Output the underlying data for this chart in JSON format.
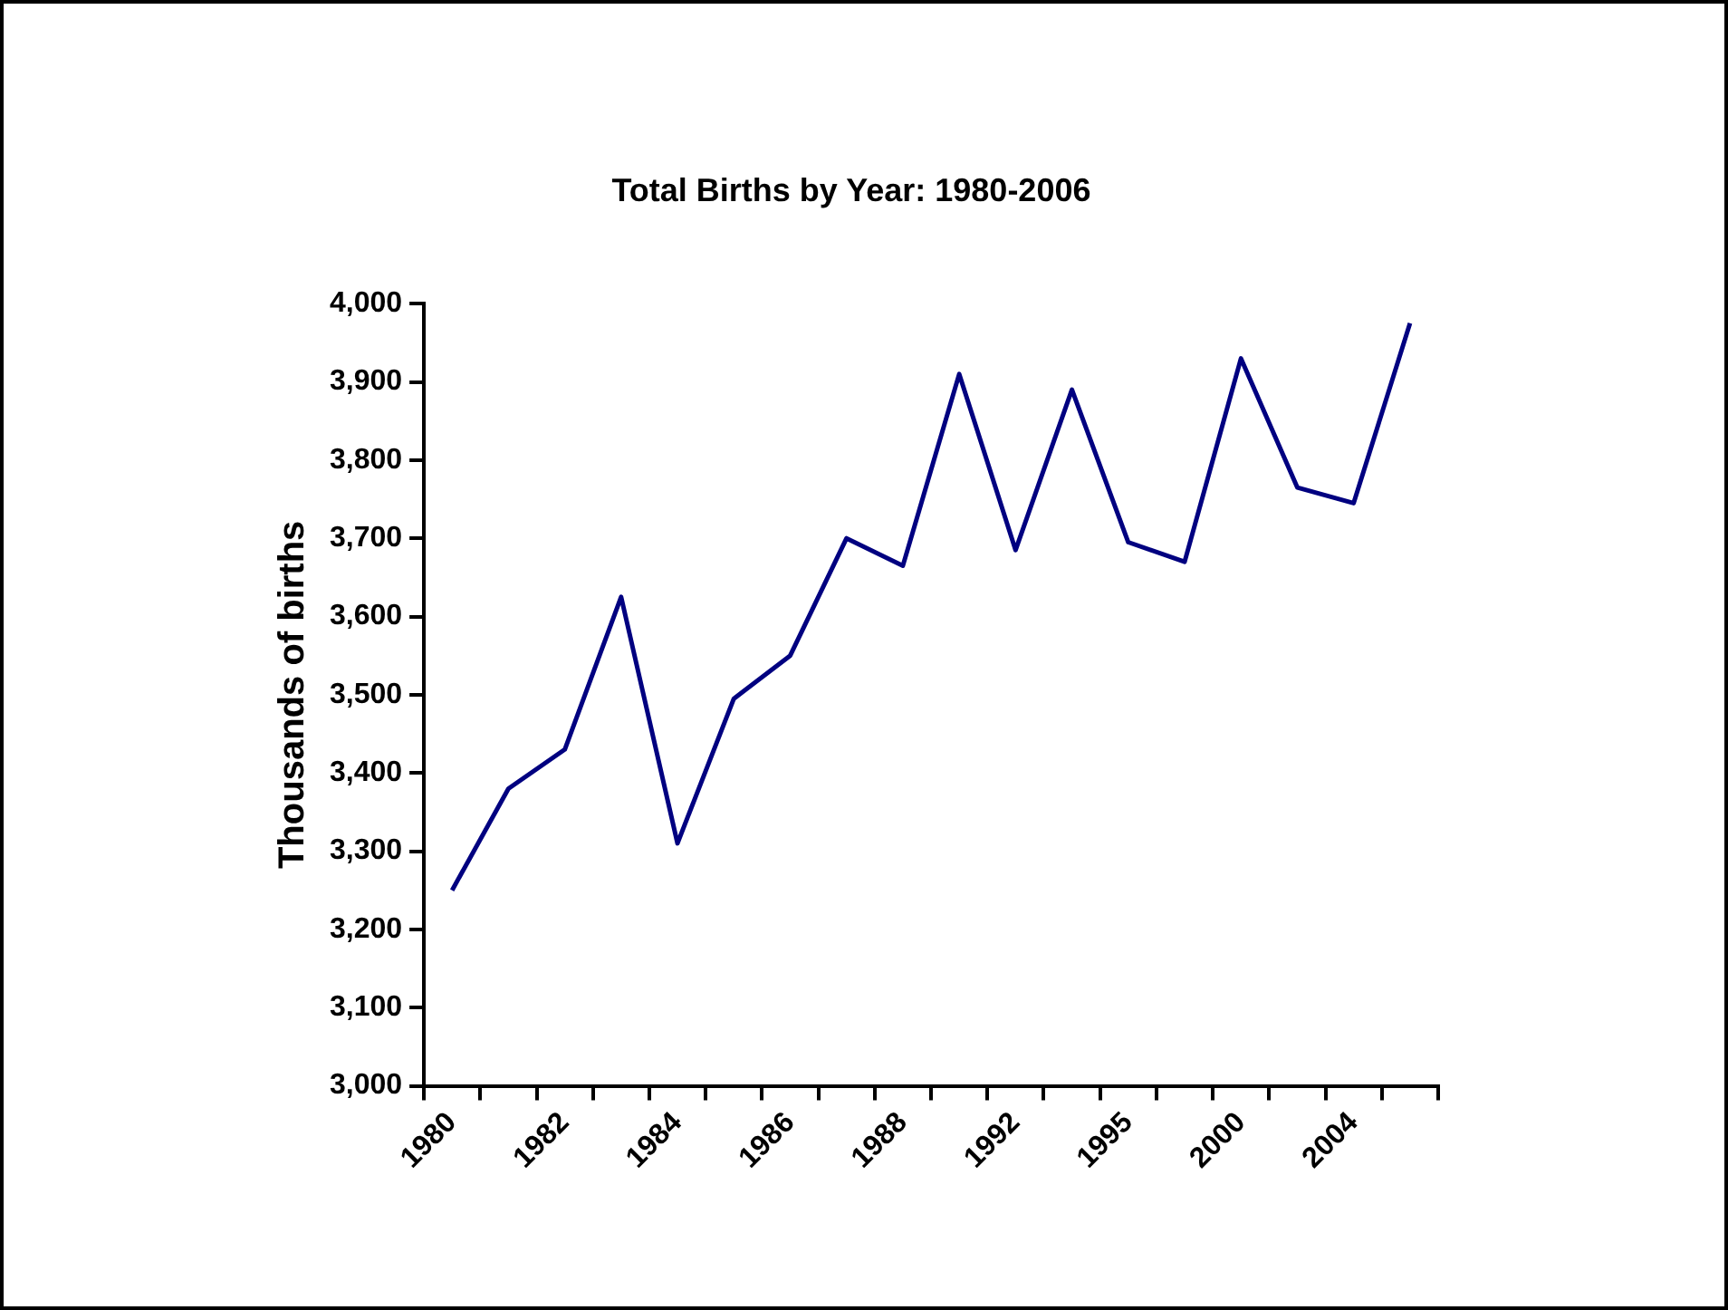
{
  "chart_data": {
    "type": "line",
    "title": "Total Births by Year: 1980-2006",
    "ylabel": "Thousands of births",
    "categories": [
      "1980",
      null,
      "1982",
      null,
      "1984",
      null,
      "1986",
      null,
      "1988",
      null,
      "1992",
      null,
      "1995",
      null,
      "2000",
      null,
      "2004",
      null
    ],
    "series": [
      {
        "color": "#000080",
        "values": [
          3250,
          3380,
          3430,
          3625,
          3310,
          3495,
          3550,
          3700,
          3665,
          3910,
          3685,
          3890,
          3695,
          3670,
          3930,
          3765,
          3745,
          3975
        ]
      }
    ],
    "ylim": [
      3000,
      4000
    ],
    "yticks": [
      {
        "value": 3000,
        "label": "3,000"
      },
      {
        "value": 3100,
        "label": "3,100"
      },
      {
        "value": 3200,
        "label": "3,200"
      },
      {
        "value": 3300,
        "label": "3,300"
      },
      {
        "value": 3400,
        "label": "3,400"
      },
      {
        "value": 3500,
        "label": "3,500"
      },
      {
        "value": 3600,
        "label": "3,600"
      },
      {
        "value": 3700,
        "label": "3,700"
      },
      {
        "value": 3800,
        "label": "3,800"
      },
      {
        "value": 3900,
        "label": "3,900"
      },
      {
        "value": 4000,
        "label": "4,000"
      }
    ],
    "grid": false,
    "legend": false,
    "marker": "none",
    "line_style": "solid"
  }
}
